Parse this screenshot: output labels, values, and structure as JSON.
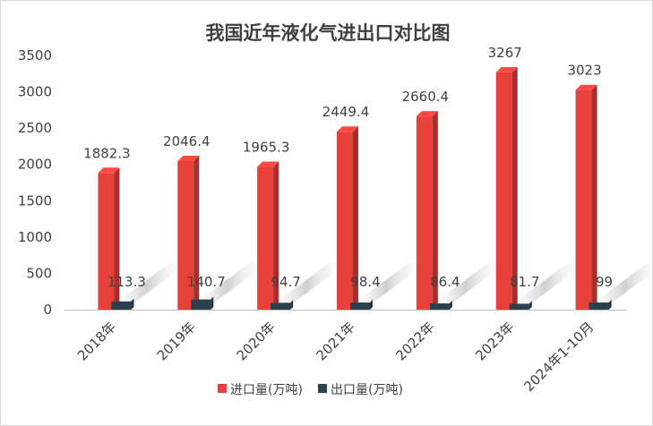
{
  "chart_data": {
    "type": "bar",
    "title": "我国近年液化气进出口对比图",
    "categories": [
      "2018年",
      "2019年",
      "2020年",
      "2021年",
      "2022年",
      "2023年",
      "2024年1-10月"
    ],
    "series": [
      {
        "name": "进口量(万吨)",
        "values": [
          1882.3,
          2046.4,
          1965.3,
          2449.4,
          2660.4,
          3267,
          3023
        ],
        "labels": [
          "1882.3",
          "2046.4",
          "1965.3",
          "2449.4",
          "2660.4",
          "3267",
          "3023"
        ],
        "color": "#e8403a"
      },
      {
        "name": "出口量(万吨)",
        "values": [
          113.3,
          140.7,
          94.7,
          98.4,
          86.4,
          81.7,
          99
        ],
        "labels": [
          "113.3",
          "140.7",
          "94.7",
          "98.4",
          "86.4",
          "81.7",
          "99"
        ],
        "color": "#2b4150"
      }
    ],
    "ylim": [
      0,
      3500
    ],
    "yticks": [
      "0",
      "500",
      "1000",
      "1500",
      "2000",
      "2500",
      "3000",
      "3500"
    ],
    "grid": false,
    "legend_position": "bottom"
  }
}
